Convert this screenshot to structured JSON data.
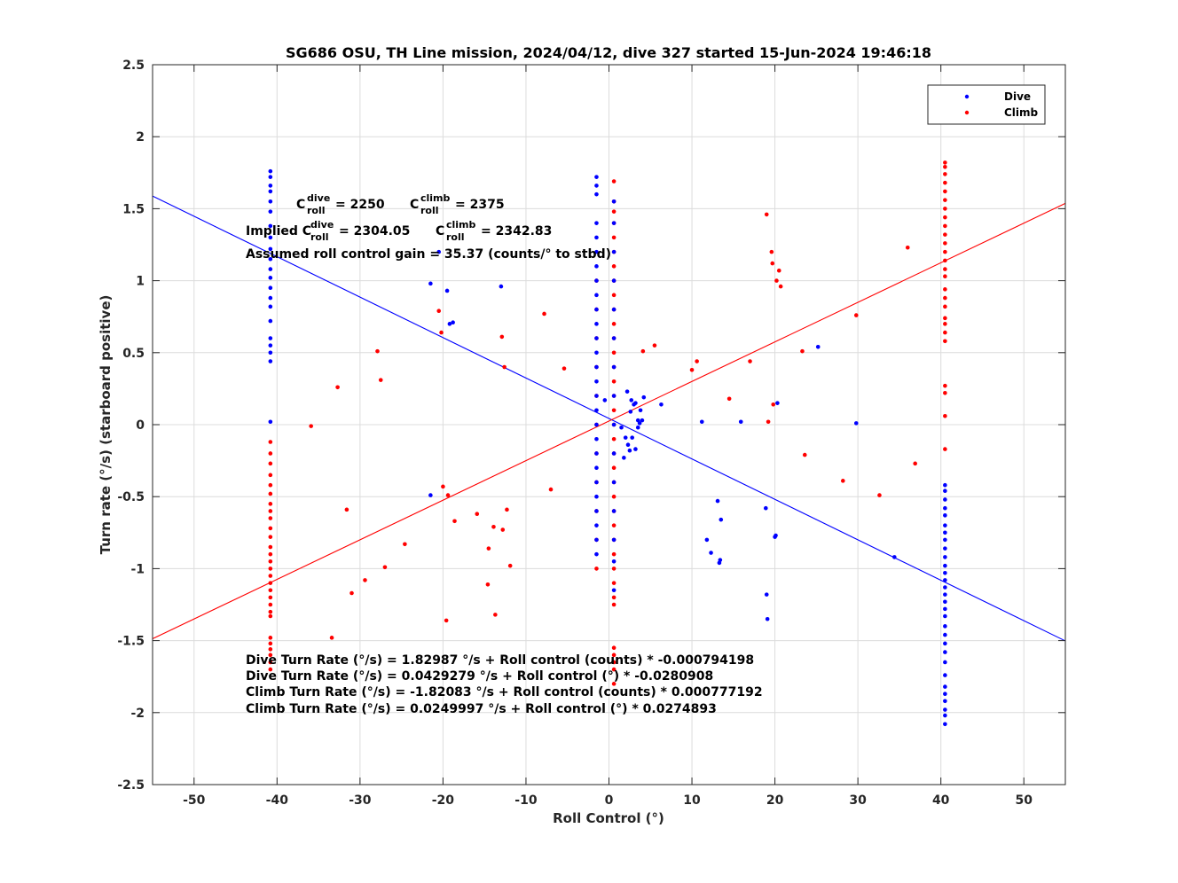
{
  "chart_data": {
    "type": "scatter",
    "title": "SG686 OSU, TH Line mission, 2024/04/12, dive 327 started 15-Jun-2024 19:46:18",
    "xlabel": "Roll Control (°)",
    "ylabel": "Turn rate (°/s) (starboard positive)",
    "xlim": [
      -55,
      55
    ],
    "ylim": [
      -2.5,
      2.5
    ],
    "xticks": [
      -50,
      -40,
      -30,
      -20,
      -10,
      0,
      10,
      20,
      30,
      40,
      50
    ],
    "yticks": [
      -2.5,
      -2,
      -1.5,
      -1,
      -0.5,
      0,
      0.5,
      1,
      1.5,
      2,
      2.5
    ],
    "grid": true,
    "legend_position": "top-right",
    "colors": {
      "dive": "#0000ff",
      "climb": "#ff0000"
    },
    "series": [
      {
        "name": "Dive",
        "color": "#0000ff",
        "fit": {
          "intercept": 0.0429279,
          "slope": -0.0280908
        },
        "points": [
          [
            -40.8,
            1.76
          ],
          [
            -40.8,
            1.72
          ],
          [
            -40.8,
            1.66
          ],
          [
            -40.8,
            1.62
          ],
          [
            -40.8,
            1.55
          ],
          [
            -40.8,
            1.48
          ],
          [
            -40.8,
            1.38
          ],
          [
            -40.8,
            1.3
          ],
          [
            -40.8,
            1.22
          ],
          [
            -40.8,
            1.15
          ],
          [
            -40.8,
            1.08
          ],
          [
            -40.8,
            1.02
          ],
          [
            -40.8,
            0.95
          ],
          [
            -40.8,
            0.88
          ],
          [
            -40.8,
            0.82
          ],
          [
            -40.8,
            0.72
          ],
          [
            -40.8,
            0.6
          ],
          [
            -40.8,
            0.55
          ],
          [
            -40.8,
            0.5
          ],
          [
            -40.8,
            0.44
          ],
          [
            -40.8,
            0.02
          ],
          [
            -1.5,
            1.72
          ],
          [
            -1.5,
            1.66
          ],
          [
            -1.5,
            1.6
          ],
          [
            -1.5,
            1.4
          ],
          [
            -1.5,
            1.3
          ],
          [
            -1.5,
            1.2
          ],
          [
            -1.5,
            1.1
          ],
          [
            -1.5,
            1.0
          ],
          [
            -1.5,
            0.9
          ],
          [
            -1.5,
            0.8
          ],
          [
            -1.5,
            0.7
          ],
          [
            -1.5,
            0.6
          ],
          [
            -1.5,
            0.5
          ],
          [
            -1.5,
            0.4
          ],
          [
            -1.5,
            0.3
          ],
          [
            -1.5,
            0.2
          ],
          [
            -1.5,
            0.1
          ],
          [
            -1.5,
            0.0
          ],
          [
            -1.5,
            -0.1
          ],
          [
            -1.5,
            -0.2
          ],
          [
            -1.5,
            -0.3
          ],
          [
            -1.5,
            -0.4
          ],
          [
            -1.5,
            -0.5
          ],
          [
            -1.5,
            -0.6
          ],
          [
            -1.5,
            -0.7
          ],
          [
            -1.5,
            -0.8
          ],
          [
            -1.5,
            -0.9
          ],
          [
            0.6,
            1.55
          ],
          [
            0.6,
            1.4
          ],
          [
            0.6,
            1.2
          ],
          [
            0.6,
            1.0
          ],
          [
            0.6,
            0.8
          ],
          [
            0.6,
            0.6
          ],
          [
            0.6,
            0.4
          ],
          [
            0.6,
            0.2
          ],
          [
            0.6,
            0.0
          ],
          [
            0.6,
            -0.2
          ],
          [
            0.6,
            -0.4
          ],
          [
            0.6,
            -0.6
          ],
          [
            0.6,
            -0.8
          ],
          [
            0.6,
            -0.95
          ],
          [
            0.6,
            -1.15
          ],
          [
            -20.5,
            1.2
          ],
          [
            -21.5,
            0.98
          ],
          [
            -19.5,
            0.93
          ],
          [
            -19.2,
            0.7
          ],
          [
            -18.8,
            0.71
          ],
          [
            -13.0,
            0.96
          ],
          [
            -21.5,
            -0.49
          ],
          [
            -0.5,
            0.17
          ],
          [
            1.5,
            -0.02
          ],
          [
            2.0,
            -0.09
          ],
          [
            2.3,
            -0.14
          ],
          [
            2.8,
            -0.09
          ],
          [
            2.5,
            -0.18
          ],
          [
            3.2,
            -0.17
          ],
          [
            3.5,
            0.03
          ],
          [
            3.5,
            -0.02
          ],
          [
            2.2,
            0.23
          ],
          [
            2.7,
            0.17
          ],
          [
            3.0,
            0.14
          ],
          [
            3.2,
            0.15
          ],
          [
            3.8,
            0.1
          ],
          [
            4.2,
            0.19
          ],
          [
            3.7,
            0.01
          ],
          [
            4.0,
            0.03
          ],
          [
            1.8,
            -0.23
          ],
          [
            2.6,
            0.09
          ],
          [
            6.3,
            0.14
          ],
          [
            11.2,
            0.02
          ],
          [
            15.9,
            0.02
          ],
          [
            20.3,
            0.15
          ],
          [
            25.2,
            0.54
          ],
          [
            29.8,
            0.01
          ],
          [
            13.1,
            -0.53
          ],
          [
            13.5,
            -0.66
          ],
          [
            11.8,
            -0.8
          ],
          [
            12.3,
            -0.89
          ],
          [
            13.4,
            -0.94
          ],
          [
            13.3,
            -0.96
          ],
          [
            18.9,
            -0.58
          ],
          [
            20.1,
            -0.77
          ],
          [
            20.0,
            -0.78
          ],
          [
            19.0,
            -1.18
          ],
          [
            19.1,
            -1.35
          ],
          [
            34.4,
            -0.92
          ],
          [
            40.5,
            -0.42
          ],
          [
            40.5,
            -0.46
          ],
          [
            40.5,
            -0.52
          ],
          [
            40.5,
            -0.58
          ],
          [
            40.5,
            -0.63
          ],
          [
            40.5,
            -0.7
          ],
          [
            40.5,
            -0.75
          ],
          [
            40.5,
            -0.8
          ],
          [
            40.5,
            -0.86
          ],
          [
            40.5,
            -0.92
          ],
          [
            40.5,
            -0.98
          ],
          [
            40.5,
            -1.03
          ],
          [
            40.5,
            -1.08
          ],
          [
            40.5,
            -1.13
          ],
          [
            40.5,
            -1.18
          ],
          [
            40.5,
            -1.23
          ],
          [
            40.5,
            -1.28
          ],
          [
            40.5,
            -1.33
          ],
          [
            40.5,
            -1.4
          ],
          [
            40.5,
            -1.46
          ],
          [
            40.5,
            -1.52
          ],
          [
            40.5,
            -1.58
          ],
          [
            40.5,
            -1.65
          ],
          [
            40.5,
            -1.74
          ],
          [
            40.5,
            -1.82
          ],
          [
            40.5,
            -1.87
          ],
          [
            40.5,
            -1.92
          ],
          [
            40.5,
            -1.98
          ],
          [
            40.5,
            -2.02
          ],
          [
            40.5,
            -2.08
          ]
        ]
      },
      {
        "name": "Climb",
        "color": "#ff0000",
        "fit": {
          "intercept": 0.0249997,
          "slope": 0.0274893
        },
        "points": [
          [
            -40.8,
            -0.12
          ],
          [
            -40.8,
            -0.2
          ],
          [
            -40.8,
            -0.27
          ],
          [
            -40.8,
            -0.35
          ],
          [
            -40.8,
            -0.42
          ],
          [
            -40.8,
            -0.48
          ],
          [
            -40.8,
            -0.55
          ],
          [
            -40.8,
            -0.6
          ],
          [
            -40.8,
            -0.65
          ],
          [
            -40.8,
            -0.72
          ],
          [
            -40.8,
            -0.78
          ],
          [
            -40.8,
            -0.85
          ],
          [
            -40.8,
            -0.9
          ],
          [
            -40.8,
            -0.95
          ],
          [
            -40.8,
            -1.0
          ],
          [
            -40.8,
            -1.05
          ],
          [
            -40.8,
            -1.1
          ],
          [
            -40.8,
            -1.15
          ],
          [
            -40.8,
            -1.2
          ],
          [
            -40.8,
            -1.25
          ],
          [
            -40.8,
            -1.3
          ],
          [
            -40.8,
            -1.33
          ],
          [
            -40.8,
            -1.48
          ],
          [
            -40.8,
            -1.52
          ],
          [
            -40.8,
            -1.56
          ],
          [
            -40.8,
            -1.6
          ],
          [
            -40.8,
            -1.65
          ],
          [
            -40.8,
            -1.7
          ],
          [
            -1.5,
            1.0
          ],
          [
            -1.5,
            0.8
          ],
          [
            -1.5,
            0.6
          ],
          [
            -1.5,
            0.4
          ],
          [
            -1.5,
            0.2
          ],
          [
            -1.5,
            0.0
          ],
          [
            -1.5,
            -0.2
          ],
          [
            -1.5,
            -0.4
          ],
          [
            -1.5,
            -0.6
          ],
          [
            -1.5,
            -0.8
          ],
          [
            -1.5,
            -1.0
          ],
          [
            0.6,
            1.69
          ],
          [
            0.6,
            1.55
          ],
          [
            0.6,
            1.48
          ],
          [
            0.6,
            1.4
          ],
          [
            0.6,
            1.3
          ],
          [
            0.6,
            1.2
          ],
          [
            0.6,
            1.1
          ],
          [
            0.6,
            1.0
          ],
          [
            0.6,
            0.9
          ],
          [
            0.6,
            0.8
          ],
          [
            0.6,
            0.7
          ],
          [
            0.6,
            0.6
          ],
          [
            0.6,
            0.5
          ],
          [
            0.6,
            0.4
          ],
          [
            0.6,
            0.3
          ],
          [
            0.6,
            0.2
          ],
          [
            0.6,
            0.1
          ],
          [
            0.6,
            0.0
          ],
          [
            0.6,
            -0.1
          ],
          [
            0.6,
            -0.2
          ],
          [
            0.6,
            -0.3
          ],
          [
            0.6,
            -0.4
          ],
          [
            0.6,
            -0.5
          ],
          [
            0.6,
            -0.6
          ],
          [
            0.6,
            -0.7
          ],
          [
            0.6,
            -0.8
          ],
          [
            0.6,
            -0.9
          ],
          [
            0.6,
            -1.0
          ],
          [
            0.6,
            -1.1
          ],
          [
            0.6,
            -1.2
          ],
          [
            0.6,
            -1.25
          ],
          [
            0.6,
            -1.55
          ],
          [
            0.6,
            -1.6
          ],
          [
            0.6,
            -1.65
          ],
          [
            0.6,
            -1.7
          ],
          [
            0.6,
            -1.8
          ],
          [
            -35.9,
            -0.01
          ],
          [
            -32.7,
            0.26
          ],
          [
            -27.9,
            0.51
          ],
          [
            -27.5,
            0.31
          ],
          [
            -20.5,
            0.79
          ],
          [
            -20.2,
            0.64
          ],
          [
            -12.9,
            0.61
          ],
          [
            -12.6,
            0.4
          ],
          [
            -7.8,
            0.77
          ],
          [
            -5.4,
            0.39
          ],
          [
            4.1,
            0.51
          ],
          [
            5.5,
            0.55
          ],
          [
            10.0,
            0.38
          ],
          [
            10.6,
            0.44
          ],
          [
            14.5,
            0.18
          ],
          [
            17.0,
            0.44
          ],
          [
            19.0,
            1.46
          ],
          [
            19.6,
            1.2
          ],
          [
            19.7,
            1.12
          ],
          [
            20.2,
            1.0
          ],
          [
            20.5,
            1.07
          ],
          [
            20.7,
            0.96
          ],
          [
            19.8,
            0.14
          ],
          [
            19.2,
            0.02
          ],
          [
            23.3,
            0.51
          ],
          [
            29.8,
            0.76
          ],
          [
            36.0,
            1.23
          ],
          [
            23.6,
            -0.21
          ],
          [
            28.2,
            -0.39
          ],
          [
            32.6,
            -0.49
          ],
          [
            36.9,
            -0.27
          ],
          [
            -31.6,
            -0.59
          ],
          [
            -31.0,
            -1.17
          ],
          [
            -27.0,
            -0.99
          ],
          [
            -24.6,
            -0.83
          ],
          [
            -33.4,
            -1.48
          ],
          [
            -29.4,
            -1.08
          ],
          [
            -20.0,
            -0.43
          ],
          [
            -19.4,
            -0.49
          ],
          [
            -18.6,
            -0.67
          ],
          [
            -15.9,
            -0.62
          ],
          [
            -14.5,
            -0.86
          ],
          [
            -14.6,
            -1.11
          ],
          [
            -13.9,
            -0.71
          ],
          [
            -12.8,
            -0.73
          ],
          [
            -12.3,
            -0.59
          ],
          [
            -11.9,
            -0.98
          ],
          [
            -13.7,
            -1.32
          ],
          [
            -19.6,
            -1.36
          ],
          [
            -7.0,
            -0.45
          ],
          [
            40.5,
            1.82
          ],
          [
            40.5,
            1.79
          ],
          [
            40.5,
            1.74
          ],
          [
            40.5,
            1.68
          ],
          [
            40.5,
            1.62
          ],
          [
            40.5,
            1.56
          ],
          [
            40.5,
            1.5
          ],
          [
            40.5,
            1.44
          ],
          [
            40.5,
            1.38
          ],
          [
            40.5,
            1.32
          ],
          [
            40.5,
            1.26
          ],
          [
            40.5,
            1.2
          ],
          [
            40.5,
            1.14
          ],
          [
            40.5,
            1.08
          ],
          [
            40.5,
            1.03
          ],
          [
            40.5,
            0.94
          ],
          [
            40.5,
            0.88
          ],
          [
            40.5,
            0.82
          ],
          [
            40.5,
            0.74
          ],
          [
            40.5,
            0.7
          ],
          [
            40.5,
            0.64
          ],
          [
            40.5,
            0.58
          ],
          [
            40.5,
            0.27
          ],
          [
            40.5,
            0.22
          ],
          [
            40.5,
            0.06
          ],
          [
            40.5,
            -0.17
          ]
        ]
      }
    ],
    "annotations": {
      "c_roll_label": "C",
      "c_roll_dive_sup": "dive",
      "c_roll_climb_sup": "climb",
      "c_roll_sub": "roll",
      "c_roll_dive_value": "= 2250",
      "c_roll_climb_value": "= 2375",
      "implied_label": "Implied C",
      "implied_dive_value": "= 2304.05",
      "implied_climb_value": "= 2342.83",
      "gain": "Assumed roll control gain = 35.37 (counts/° to stbd)",
      "fit_lines": [
        "Dive Turn Rate (°/s) = 1.82987 °/s + Roll control (counts) * -0.000794198",
        "Dive Turn Rate (°/s) = 0.0429279 °/s + Roll control (°) * -0.0280908",
        "Climb Turn Rate (°/s) = -1.82083 °/s + Roll control (counts) * 0.000777192",
        "Climb Turn Rate (°/s) = 0.0249997 °/s + Roll control (°) * 0.0274893"
      ]
    }
  }
}
